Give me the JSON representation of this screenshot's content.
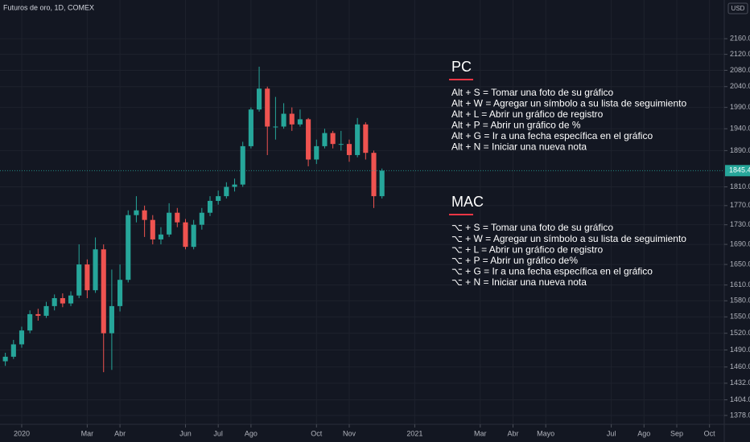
{
  "chart_data": {
    "type": "candlestick",
    "title": "Futuros de oro, 1D, COMEX",
    "currency": "USD",
    "log": true,
    "grid": true,
    "up_color": "#26a69a",
    "down_color": "#ef5350",
    "ylim": [
      1363.5,
      2262
    ],
    "yticks": [
      {
        "value": 1378,
        "label": "1378.0"
      },
      {
        "value": 1404,
        "label": "1404.0"
      },
      {
        "value": 1432,
        "label": "1432.0"
      },
      {
        "value": 1460,
        "label": "1460.0"
      },
      {
        "value": 1490,
        "label": "1490.0"
      },
      {
        "value": 1520,
        "label": "1520.0"
      },
      {
        "value": 1550,
        "label": "1550.0"
      },
      {
        "value": 1580,
        "label": "1580.0"
      },
      {
        "value": 1610,
        "label": "1610.0"
      },
      {
        "value": 1650,
        "label": "1650.0"
      },
      {
        "value": 1690,
        "label": "1690.0"
      },
      {
        "value": 1730,
        "label": "1730.0"
      },
      {
        "value": 1770,
        "label": "1770.0"
      },
      {
        "value": 1810,
        "label": "1810.0"
      },
      {
        "value": 1890,
        "label": "1890.0"
      },
      {
        "value": 1940,
        "label": "1940.0"
      },
      {
        "value": 1990,
        "label": "1990.0"
      },
      {
        "value": 2040,
        "label": "2040.0"
      },
      {
        "value": 2080,
        "label": "2080.0"
      },
      {
        "value": 2120,
        "label": "2120.0"
      },
      {
        "value": 2160,
        "label": "2160.0"
      }
    ],
    "xlim": [
      -0.663,
      21.45
    ],
    "xticks": [
      {
        "value": 0,
        "label": "2020"
      },
      {
        "value": 2,
        "label": "Mar"
      },
      {
        "value": 3,
        "label": "Abr"
      },
      {
        "value": 5,
        "label": "Jun"
      },
      {
        "value": 6,
        "label": "Jul"
      },
      {
        "value": 7,
        "label": "Ago"
      },
      {
        "value": 9,
        "label": "Oct"
      },
      {
        "value": 10,
        "label": "Nov"
      },
      {
        "value": 12,
        "label": "2021"
      },
      {
        "value": 14,
        "label": "Mar"
      },
      {
        "value": 15,
        "label": "Abr"
      },
      {
        "value": 16,
        "label": "Mayo"
      },
      {
        "value": 18,
        "label": "Jul"
      },
      {
        "value": 19,
        "label": "Ago"
      },
      {
        "value": 20,
        "label": "Sep"
      },
      {
        "value": 21,
        "label": "Oct"
      }
    ],
    "x": [
      -0.5,
      -0.25,
      0,
      0.25,
      0.5,
      0.75,
      1,
      1.25,
      1.5,
      1.75,
      2,
      2.25,
      2.5,
      2.75,
      3,
      3.25,
      3.5,
      3.75,
      4,
      4.25,
      4.5,
      4.75,
      5,
      5.25,
      5.5,
      5.75,
      6,
      6.25,
      6.5,
      6.75,
      7,
      7.25,
      7.5,
      7.75,
      8,
      8.25,
      8.5,
      8.75,
      9,
      9.25,
      9.5,
      9.75,
      10,
      10.25,
      10.5,
      10.75,
      11
    ],
    "open": [
      1470,
      1478,
      1500,
      1525,
      1555,
      1552,
      1570,
      1585,
      1575,
      1590,
      1650,
      1600,
      1680,
      1520,
      1570,
      1620,
      1750,
      1760,
      1740,
      1700,
      1710,
      1755,
      1735,
      1685,
      1730,
      1755,
      1780,
      1790,
      1810,
      1815,
      1900,
      1985,
      2035,
      1945,
      1945,
      1975,
      1950,
      1962,
      1870,
      1900,
      1930,
      1905,
      1905,
      1880,
      1950,
      1885,
      1790
    ],
    "high": [
      1485,
      1508,
      1532,
      1562,
      1565,
      1578,
      1592,
      1594,
      1598,
      1690,
      1660,
      1704,
      1690,
      1640,
      1650,
      1760,
      1790,
      1770,
      1750,
      1725,
      1775,
      1765,
      1742,
      1740,
      1765,
      1790,
      1802,
      1820,
      1828,
      1910,
      1990,
      2089,
      2040,
      2015,
      2000,
      1990,
      1985,
      1965,
      1915,
      1940,
      1935,
      1935,
      1915,
      1965,
      1955,
      1890,
      1850
    ],
    "low": [
      1462,
      1474,
      1494,
      1520,
      1543,
      1548,
      1562,
      1568,
      1570,
      1585,
      1585,
      1595,
      1451,
      1455,
      1560,
      1615,
      1735,
      1705,
      1690,
      1690,
      1705,
      1725,
      1680,
      1680,
      1720,
      1748,
      1772,
      1785,
      1800,
      1810,
      1895,
      1980,
      1880,
      1915,
      1940,
      1935,
      1945,
      1855,
      1860,
      1895,
      1895,
      1890,
      1865,
      1875,
      1870,
      1765,
      1785
    ],
    "close": [
      1478,
      1500,
      1525,
      1555,
      1552,
      1570,
      1585,
      1575,
      1590,
      1650,
      1600,
      1680,
      1520,
      1570,
      1620,
      1750,
      1760,
      1740,
      1700,
      1710,
      1755,
      1735,
      1685,
      1730,
      1755,
      1780,
      1790,
      1810,
      1815,
      1900,
      1985,
      2035,
      1945,
      1945,
      1975,
      1950,
      1962,
      1870,
      1900,
      1930,
      1905,
      1905,
      1880,
      1950,
      1885,
      1790,
      1845.4
    ],
    "last_price": 1845.4,
    "annotations": [
      {
        "title": "PC",
        "lines": [
          "Alt + S = Tomar una foto de su gráfico",
          "Alt + W = Agregar un símbolo a su lista de seguimiento",
          "Alt + L = Abrir un gráfico de registro",
          "Alt + P = Abrir un gráfico de %",
          "Alt + G = Ir a una fecha específica en el gráfico",
          "Alt + N = Iniciar una nueva nota"
        ]
      },
      {
        "title": "MAC",
        "lines": [
          "⌥ + S = Tomar una foto de su gráfico",
          "⌥ + W = Agregar un símbolo a su lista de seguimiento",
          "⌥ + L = Abrir un gráfico de registro",
          "⌥ + P = Abrir un gráfico de%",
          "⌥ + G = Ir a una fecha específica en el gráfico",
          "⌥ + N = Iniciar una nueva nota"
        ]
      }
    ]
  }
}
